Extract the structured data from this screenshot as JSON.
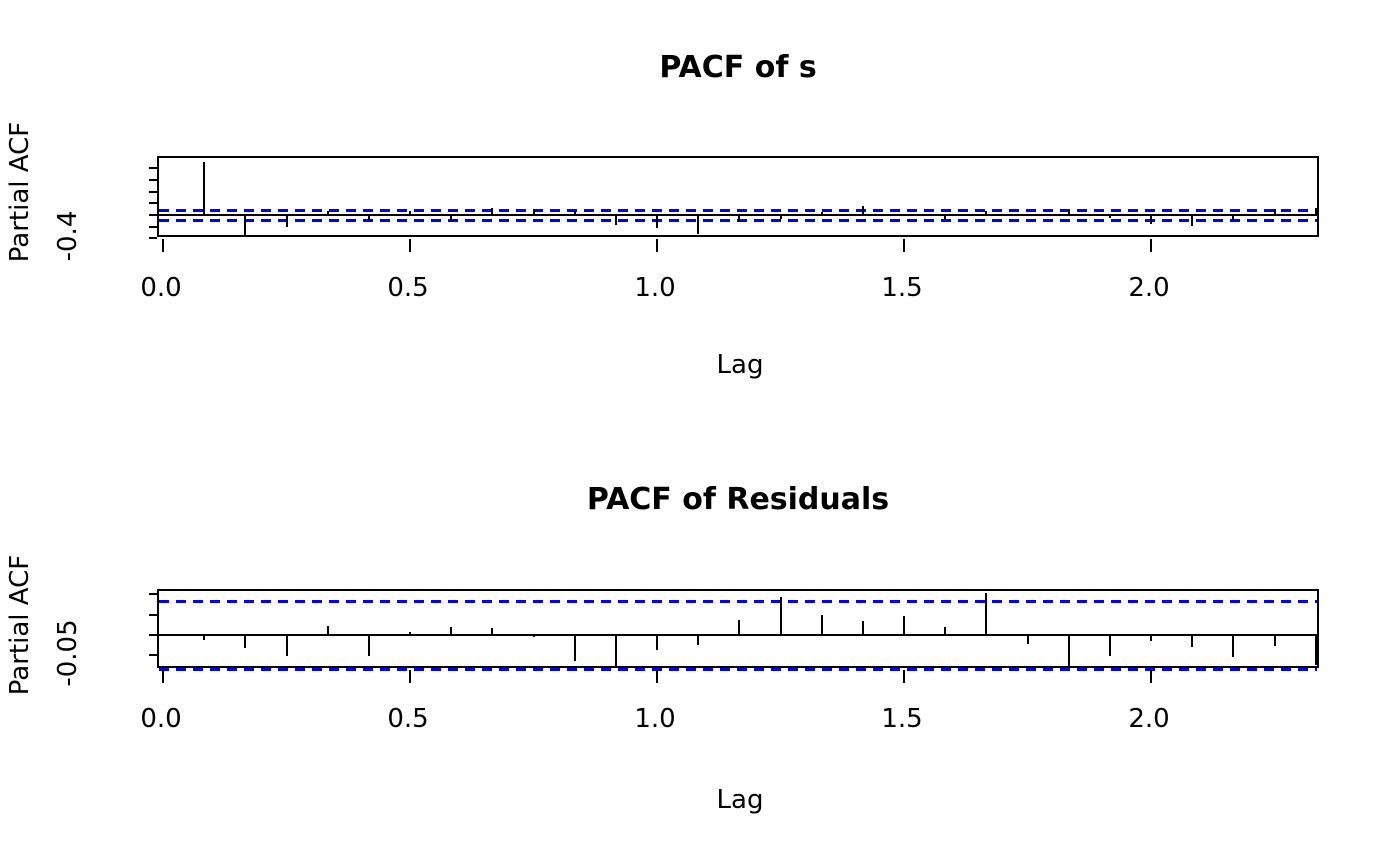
{
  "chart_data": [
    {
      "type": "bar",
      "title": "PACF of s",
      "xlabel": "Lag",
      "ylabel": "Partial ACF",
      "x": [
        0.083,
        0.167,
        0.25,
        0.333,
        0.417,
        0.5,
        0.583,
        0.667,
        0.75,
        0.833,
        0.917,
        1.0,
        1.083,
        1.167,
        1.25,
        1.333,
        1.417,
        1.5,
        1.583,
        1.667,
        1.75,
        1.833,
        1.917,
        2.0,
        2.083,
        2.167,
        2.25,
        2.333
      ],
      "values": [
        0.91,
        -0.36,
        -0.21,
        0.07,
        -0.08,
        0.07,
        -0.1,
        0.13,
        0.1,
        0.07,
        -0.17,
        -0.22,
        -0.32,
        -0.12,
        -0.07,
        0.06,
        0.16,
        0.01,
        -0.06,
        0.07,
        -0.02,
        0.08,
        -0.05,
        -0.15,
        -0.18,
        -0.08,
        0.1,
        0.12
      ],
      "x_ticks": [
        {
          "value": 0.0,
          "label": "0.0"
        },
        {
          "value": 0.5,
          "label": "0.5"
        },
        {
          "value": 1.0,
          "label": "1.0"
        },
        {
          "value": 1.5,
          "label": "1.5"
        },
        {
          "value": 2.0,
          "label": "2.0"
        }
      ],
      "y_ticks": [
        0.8,
        0.6,
        0.4,
        0.2,
        0.0,
        -0.2,
        -0.4
      ],
      "y_shown_tick": {
        "value": -0.4,
        "label": "-0.4"
      },
      "ylim": [
        -0.41,
        0.98
      ],
      "conf_band": 0.084,
      "conf_color": "#0000ff",
      "bar_color": "#000000",
      "grid": false,
      "legend_position": "none"
    },
    {
      "type": "bar",
      "title": "PACF of Residuals",
      "xlabel": "Lag",
      "ylabel": "Partial ACF",
      "x": [
        0.083,
        0.167,
        0.25,
        0.333,
        0.417,
        0.5,
        0.583,
        0.667,
        0.75,
        0.833,
        0.917,
        1.0,
        1.083,
        1.167,
        1.25,
        1.333,
        1.417,
        1.5,
        1.583,
        1.667,
        1.75,
        1.833,
        1.917,
        2.0,
        2.083,
        2.167,
        2.25,
        2.333
      ],
      "values": [
        -0.012,
        -0.032,
        -0.051,
        0.023,
        -0.053,
        0.008,
        0.019,
        0.016,
        -0.006,
        -0.064,
        -0.079,
        -0.038,
        -0.026,
        0.036,
        0.092,
        0.048,
        0.034,
        0.047,
        0.02,
        0.103,
        -0.023,
        -0.078,
        -0.053,
        -0.016,
        -0.03,
        -0.055,
        -0.028,
        -0.075
      ],
      "x_ticks": [
        {
          "value": 0.0,
          "label": "0.0"
        },
        {
          "value": 0.5,
          "label": "0.5"
        },
        {
          "value": 1.0,
          "label": "1.0"
        },
        {
          "value": 1.5,
          "label": "1.5"
        },
        {
          "value": 2.0,
          "label": "2.0"
        }
      ],
      "y_ticks": [
        0.1,
        0.05,
        0.0,
        -0.05
      ],
      "y_shown_tick": {
        "value": -0.05,
        "label": "-0.05"
      },
      "ylim": [
        -0.0865,
        0.108
      ],
      "conf_band": 0.084,
      "conf_color": "#0000ff",
      "bar_color": "#000000",
      "grid": false,
      "legend_position": "none"
    }
  ]
}
